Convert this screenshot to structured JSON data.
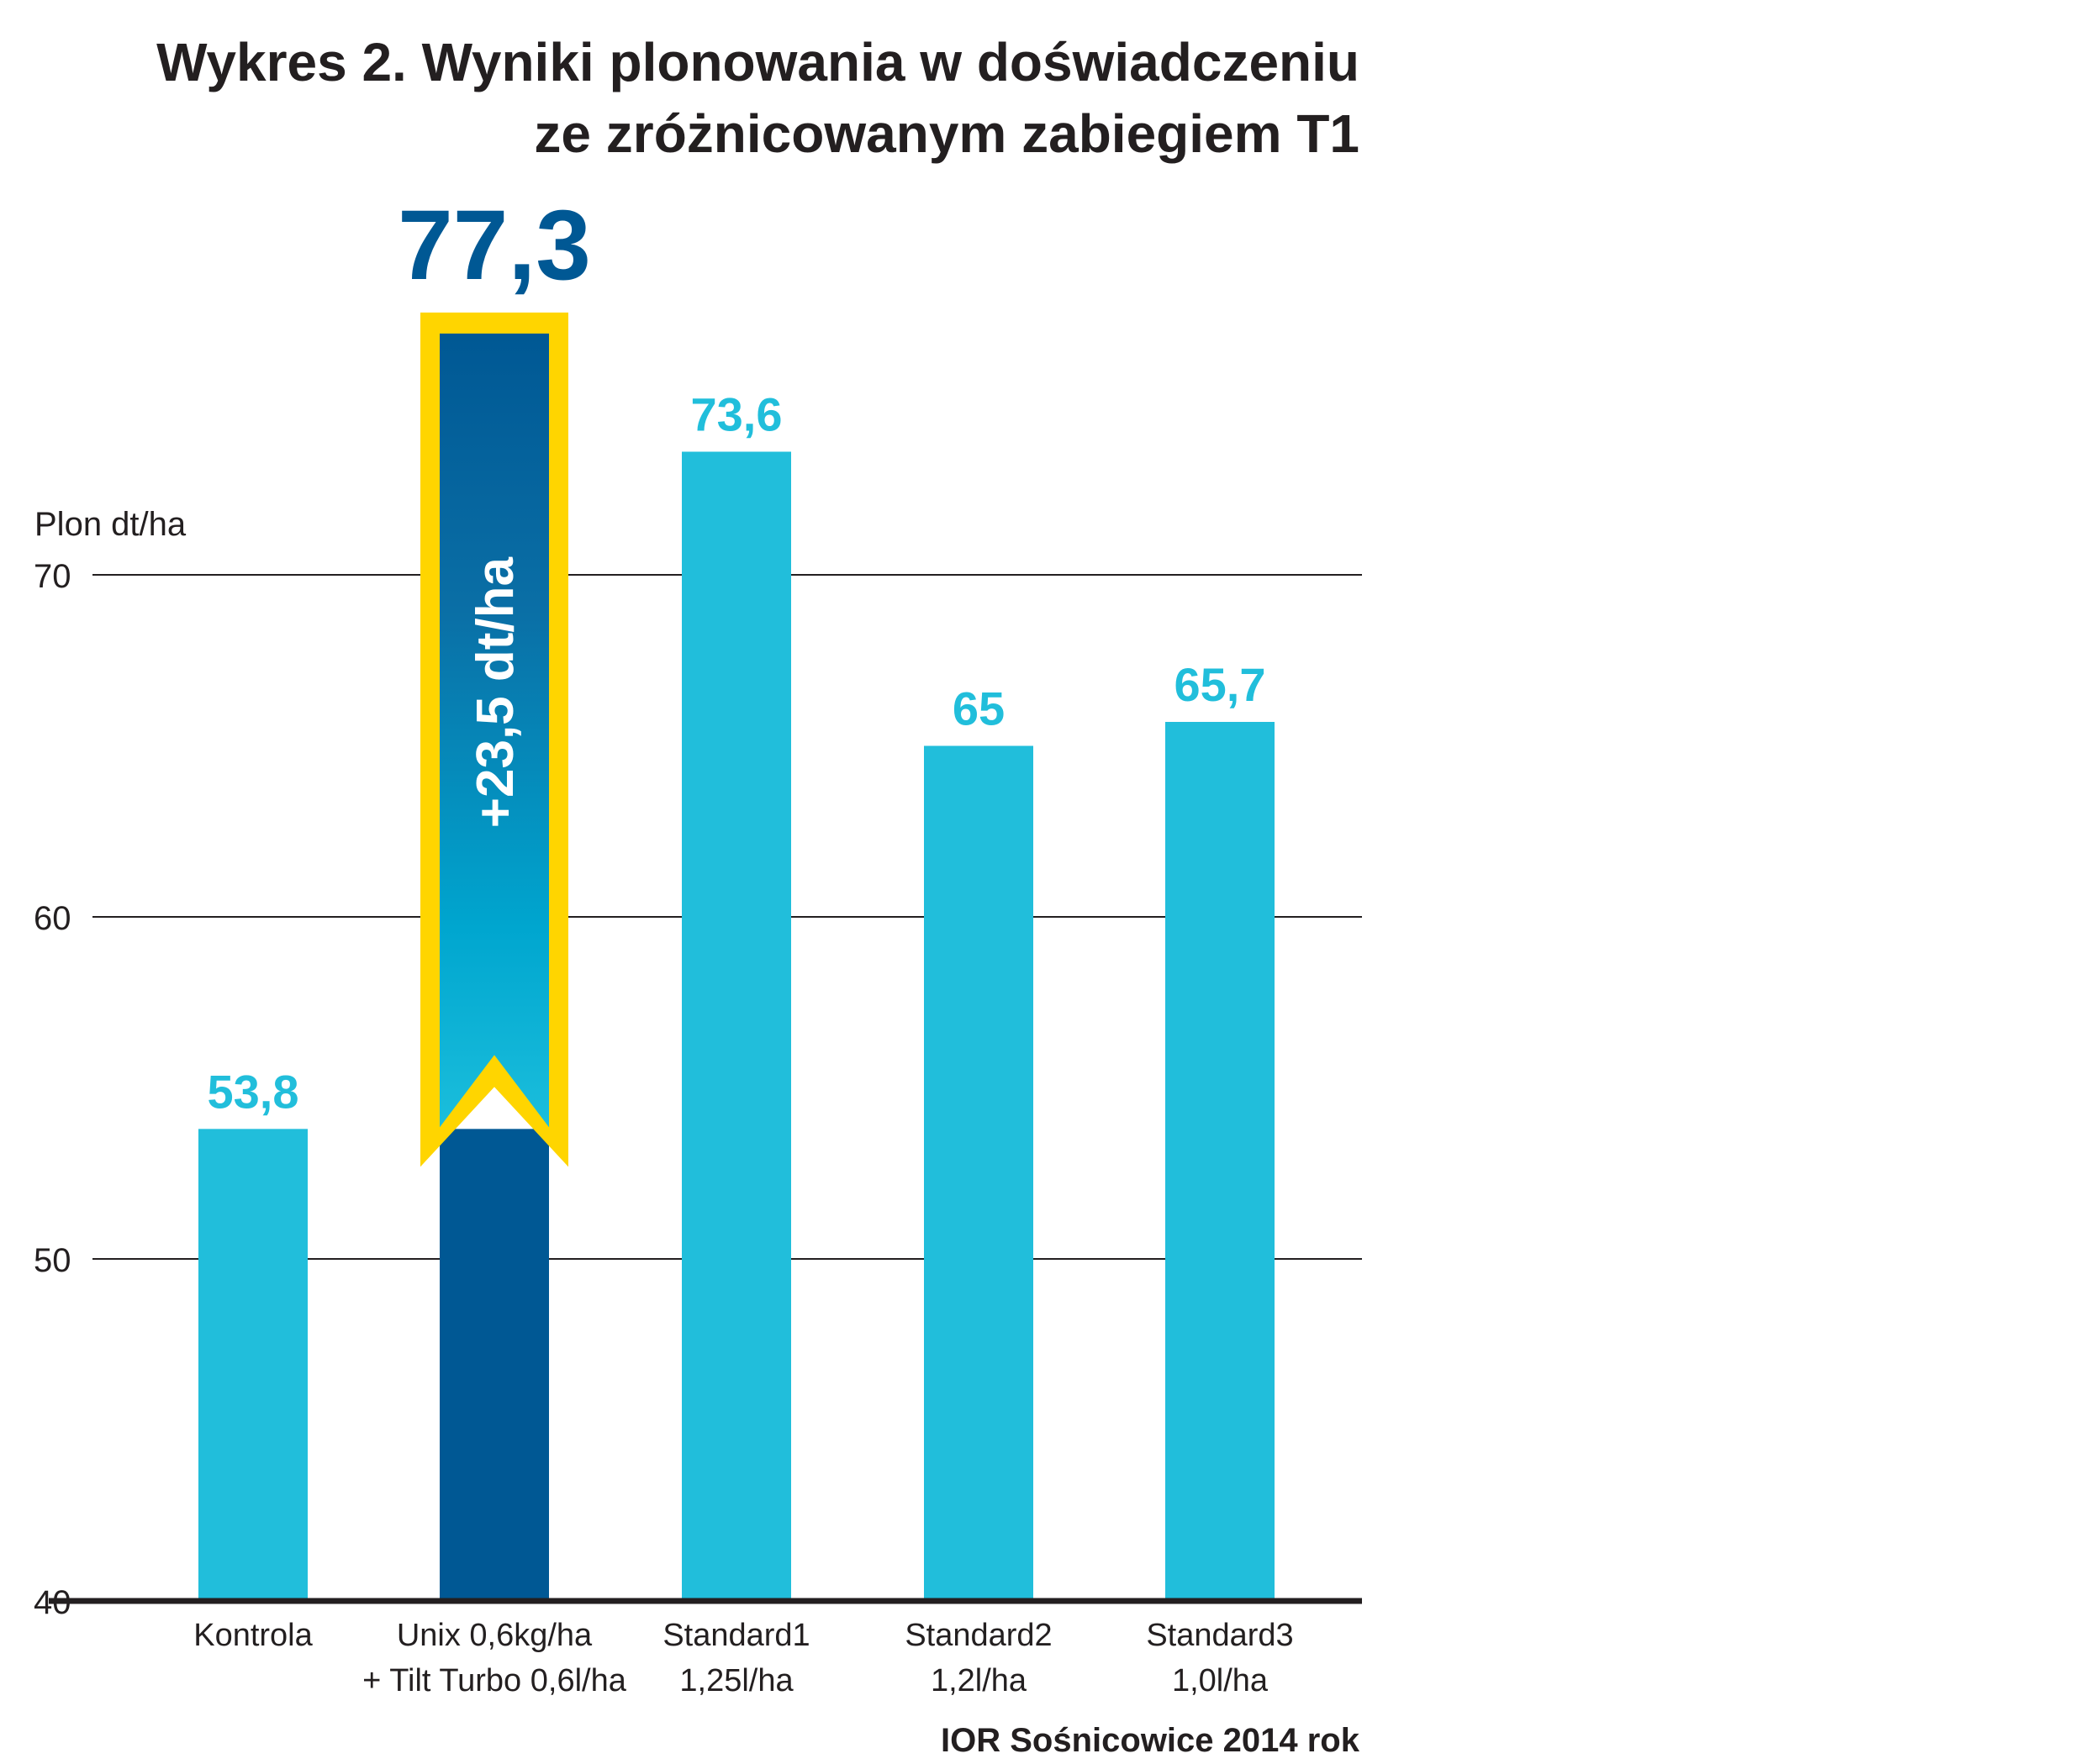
{
  "chart_data": {
    "type": "bar",
    "title_lines": [
      "Wykres 2. Wyniki plonowania w doświadczeniu",
      "ze zróżnicowanym zabiegiem T1"
    ],
    "ylabel": "Plon dt/ha",
    "ylim": [
      40,
      80
    ],
    "yticks": [
      {
        "value": 40,
        "label": "40"
      },
      {
        "value": 50,
        "label": "50"
      },
      {
        "value": 60,
        "label": "60"
      },
      {
        "value": 70,
        "label": "70"
      }
    ],
    "grid": true,
    "categories": [
      [
        "Kontrola"
      ],
      [
        "Unix 0,6kg/ha",
        "+ Tilt Turbo 0,6l/ha"
      ],
      [
        "Standard1",
        "1,25l/ha"
      ],
      [
        "Standard2",
        "1,2l/ha"
      ],
      [
        "Standard3",
        "1,0l/ha"
      ]
    ],
    "values": [
      53.8,
      77.3,
      73.6,
      65,
      65.7
    ],
    "value_labels": [
      "53,8",
      "77,3",
      "73,6",
      "65",
      "65,7"
    ],
    "highlight_index": 1,
    "highlight_annotation": "+23,5 dt/ha",
    "source": "IOR Sośnicowice 2014 rok",
    "colors": {
      "bar": "#21bedb",
      "highlight_bar": "#005894",
      "highlight_gradient_end": "#1bbedc",
      "highlight_border": "#ffd500",
      "value_label": "#21bedb",
      "highlight_value_label": "#005894",
      "text": "#231f20",
      "grid": "#231f20"
    }
  }
}
